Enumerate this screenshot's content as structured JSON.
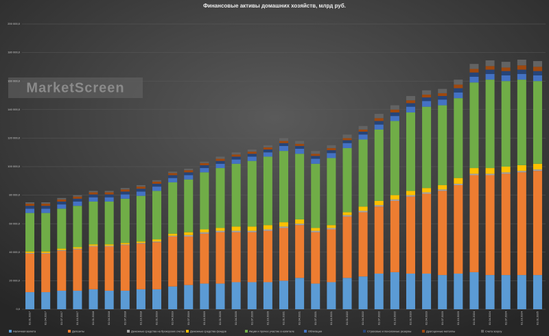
{
  "chart_data": {
    "type": "stacked_bar",
    "title": "Финансовые активы домашних хозяйств, млрд руб.",
    "watermark": "MarketScreen",
    "categories": [
      "01.01.2017",
      "01.04.2017",
      "01.07.2017",
      "01.10.2017",
      "01.01.2018",
      "01.04.2018",
      "01.07.2018",
      "01.10.2018",
      "01.01.2019",
      "01.04.2019",
      "01.07.2019",
      "01.10.2019",
      "01.01.2020",
      "01.04.2020",
      "01.07.2020",
      "01.10.2020",
      "01.01.2021",
      "01.04.2021",
      "01.07.2021",
      "01.10.2021",
      "01.01.2022",
      "01.04.2022",
      "01.07.2022",
      "01.10.2022",
      "01.01.2023",
      "01.04.2023",
      "01.07.2023",
      "01.10.2023",
      "01.01.2024",
      "01.04.2024",
      "01.07.2024",
      "01.10.2024",
      "01.01.2025"
    ],
    "series": [
      {
        "name": "Наличная валюта",
        "color": "#5b9bd5",
        "values": [
          12000,
          12000,
          13000,
          13000,
          14000,
          13000,
          13000,
          14000,
          14000,
          16000,
          17000,
          18000,
          18000,
          19000,
          19000,
          19000,
          20000,
          22000,
          18000,
          19000,
          22000,
          23000,
          25000,
          26000,
          25000,
          25000,
          24000,
          25000,
          26000,
          24000,
          24000,
          24000,
          24000
        ]
      },
      {
        "name": "Депозиты",
        "color": "#ed7d31",
        "values": [
          27000,
          27000,
          28000,
          29000,
          30000,
          31000,
          32000,
          32000,
          33000,
          35000,
          34000,
          35000,
          36000,
          35000,
          35000,
          36000,
          37000,
          37000,
          36000,
          37000,
          43000,
          45000,
          47000,
          50000,
          54000,
          56000,
          59000,
          62000,
          68000,
          70000,
          71000,
          72000,
          73000
        ]
      },
      {
        "name": "Денежные средства на брокерских счетах",
        "color": "#a5a5a5",
        "values": [
          500,
          500,
          500,
          500,
          500,
          500,
          500,
          500,
          500,
          500,
          1000,
          1000,
          1000,
          1000,
          1000,
          1000,
          1000,
          1000,
          1000,
          1000,
          1000,
          1000,
          1000,
          1000,
          1000,
          1000,
          1000,
          1000,
          1000,
          1000,
          1000,
          1000,
          1000
        ]
      },
      {
        "name": "Денежные средства фондов",
        "color": "#ffc000",
        "values": [
          1000,
          1000,
          1000,
          1000,
          1000,
          1000,
          1000,
          1000,
          1500,
          1500,
          2000,
          2000,
          2000,
          3000,
          3000,
          3000,
          3000,
          3000,
          2000,
          2000,
          2000,
          3000,
          3000,
          3000,
          3000,
          3000,
          3000,
          4000,
          4000,
          4000,
          4000,
          4000,
          4000
        ]
      },
      {
        "name": "Акции и прочее участие в капитале",
        "color": "#70ad47",
        "values": [
          27000,
          27000,
          28000,
          29000,
          30000,
          30000,
          31000,
          32000,
          34000,
          36000,
          37000,
          40000,
          42000,
          44000,
          46000,
          48000,
          50000,
          46000,
          45000,
          47000,
          45000,
          47000,
          50000,
          52000,
          55000,
          57000,
          56000,
          56000,
          60000,
          62000,
          60000,
          60000,
          58000
        ]
      },
      {
        "name": "Облигации",
        "color": "#4472c4",
        "values": [
          3000,
          3000,
          3000,
          3000,
          3000,
          3000,
          3000,
          3000,
          3000,
          3000,
          3000,
          3000,
          3000,
          3000,
          3000,
          3000,
          3500,
          3500,
          3500,
          3500,
          3500,
          3500,
          3500,
          3500,
          4000,
          4000,
          4000,
          4000,
          4000,
          4000,
          4000,
          4000,
          4000
        ]
      },
      {
        "name": "Страховые и пенсионные резервы",
        "color": "#264478",
        "values": [
          2000,
          2000,
          2000,
          2000,
          2000,
          2000,
          2000,
          2000,
          2000,
          2000,
          2000,
          2000,
          2000,
          2000,
          2000,
          2000,
          2000,
          2000,
          2000,
          2000,
          2000,
          2000,
          2500,
          2500,
          2500,
          2500,
          2500,
          3000,
          3000,
          3000,
          3000,
          3000,
          3000
        ]
      },
      {
        "name": "Драгоценные металлы",
        "color": "#9e480e",
        "values": [
          1500,
          1500,
          1500,
          1500,
          1500,
          1500,
          1500,
          1500,
          1500,
          1500,
          1500,
          1500,
          1500,
          1500,
          1500,
          1500,
          1500,
          1500,
          1500,
          1500,
          1500,
          1500,
          2000,
          2000,
          2000,
          2000,
          2000,
          2500,
          2500,
          2500,
          2500,
          3000,
          3000
        ]
      },
      {
        "name": "Счета эскроу",
        "color": "#636363",
        "values": [
          1000,
          1000,
          1000,
          1000,
          1000,
          1000,
          1000,
          1000,
          1000,
          1000,
          1000,
          1000,
          1500,
          1500,
          1500,
          1500,
          2000,
          2000,
          2000,
          2000,
          2500,
          2500,
          3000,
          3000,
          3000,
          3000,
          3000,
          3500,
          3500,
          4000,
          4000,
          4000,
          4000
        ]
      }
    ],
    "ylim": [
      0,
      200000
    ],
    "yticks": [
      {
        "value": 0,
        "label": "0,0"
      },
      {
        "value": 20000,
        "label": "20 000,0"
      },
      {
        "value": 40000,
        "label": "40 000,0"
      },
      {
        "value": 60000,
        "label": "60 000,0"
      },
      {
        "value": 80000,
        "label": "80 000,0"
      },
      {
        "value": 100000,
        "label": "100 000,0"
      },
      {
        "value": 120000,
        "label": "120 000,0"
      },
      {
        "value": 140000,
        "label": "140 000,0"
      },
      {
        "value": 160000,
        "label": "160 000,0"
      },
      {
        "value": 180000,
        "label": "180 000,0"
      },
      {
        "value": 200000,
        "label": "200 000,0"
      }
    ],
    "grid": true,
    "legend": "bottom"
  }
}
